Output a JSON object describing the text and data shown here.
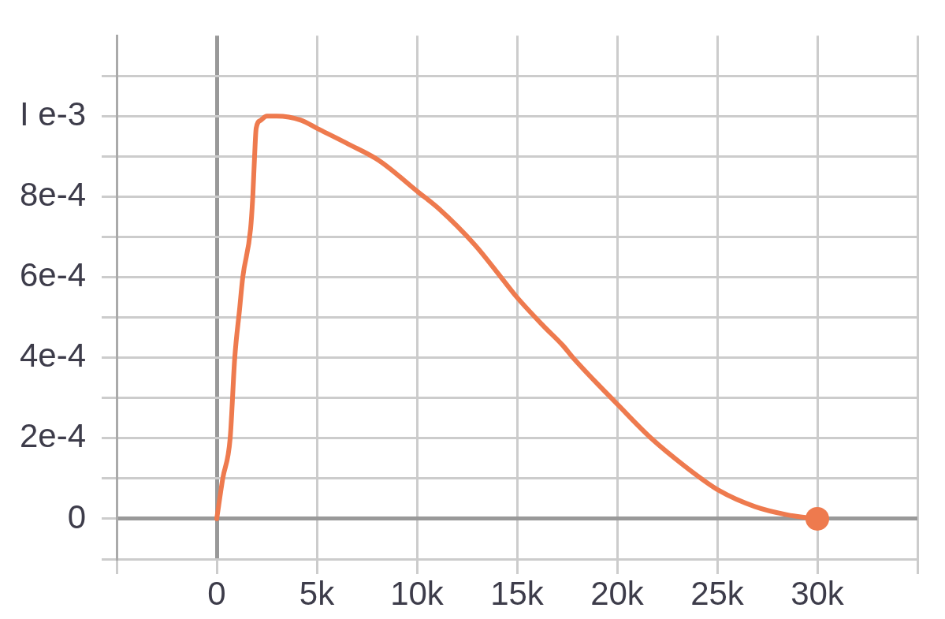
{
  "chart_data": {
    "type": "line",
    "xlim": [
      -5000,
      35000
    ],
    "ylim": [
      -0.0001,
      0.0012
    ],
    "xticks": [
      {
        "value": -5000,
        "label": null
      },
      0,
      {
        "value": 5000,
        "label": "5k"
      },
      {
        "value": 10000,
        "label": "10k"
      },
      {
        "value": 15000,
        "label": "15k"
      },
      {
        "value": 20000,
        "label": "20k"
      },
      {
        "value": 25000,
        "label": "25k"
      },
      {
        "value": 30000,
        "label": "30k"
      },
      {
        "value": 35000,
        "label": null
      }
    ],
    "yticks": [
      {
        "value": -0.0001,
        "label": null
      },
      0,
      {
        "value": 0.0001,
        "label": null
      },
      {
        "value": 0.0002,
        "label": "2e-4"
      },
      {
        "value": 0.0003,
        "label": null
      },
      {
        "value": 0.0004,
        "label": "4e-4"
      },
      {
        "value": 0.0005,
        "label": null
      },
      {
        "value": 0.0006,
        "label": "6e-4"
      },
      {
        "value": 0.0007,
        "label": null
      },
      {
        "value": 0.0008,
        "label": "8e-4"
      },
      {
        "value": 0.0009,
        "label": null
      },
      {
        "value": 0.001,
        "label": "I e-3"
      },
      {
        "value": 0.0011,
        "label": null
      }
    ],
    "grid": true,
    "series": [
      {
        "color": "#ee7a4e",
        "marker": "none",
        "x": [
          0,
          300,
          670,
          900,
          1140,
          1300,
          1690,
          1800,
          1890,
          1970,
          2200,
          2500,
          3000,
          4200,
          5000,
          6600,
          8100,
          10100,
          11100,
          12900,
          14200,
          15000,
          16300,
          17300,
          17800,
          20100,
          21700,
          23400,
          25100,
          26900,
          28500,
          30000
        ],
        "values": [
          0,
          0.0001,
          0.0002,
          0.0004,
          0.00052,
          0.0006,
          0.00072,
          0.0008,
          0.0009,
          0.00097,
          0.00099,
          0.001,
          0.001,
          0.00099,
          0.00097,
          0.00093,
          0.00089,
          0.00081,
          0.00077,
          0.00068,
          0.0006,
          0.00055,
          0.00048,
          0.00043,
          0.0004,
          0.00028,
          0.0002,
          0.00013,
          7e-05,
          3e-05,
          1e-05,
          0
        ]
      },
      {
        "type": "scatter",
        "color": "#ee7a4e",
        "marker": "circle",
        "x": [
          30000
        ],
        "values": [
          0
        ]
      }
    ]
  }
}
